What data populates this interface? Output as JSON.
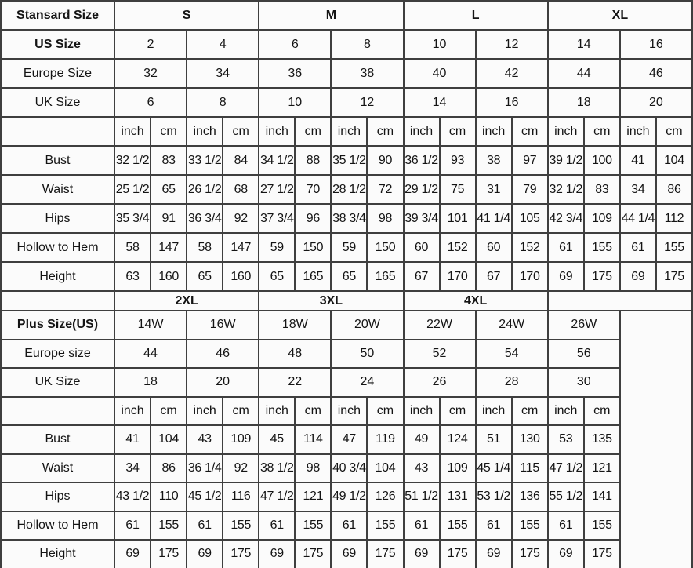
{
  "colors": {
    "border": "#3f3f3f",
    "thick_group_mark": "#000000",
    "cell_background": "#fbfbfb",
    "text": "#141414"
  },
  "chart_data": [
    {
      "type": "table",
      "name": "standard-sizes",
      "corner_label": "Stansard Size",
      "size_groups": [
        "S",
        "M",
        "L",
        "XL"
      ],
      "size_rows": [
        {
          "label": "US Size",
          "bold": true,
          "cells": [
            "2",
            "4",
            "6",
            "8",
            "10",
            "12",
            "14",
            "16"
          ]
        },
        {
          "label": "Europe Size",
          "bold": false,
          "cells": [
            "32",
            "34",
            "36",
            "38",
            "40",
            "42",
            "44",
            "46"
          ]
        },
        {
          "label": "UK Size",
          "bold": false,
          "cells": [
            "6",
            "8",
            "10",
            "12",
            "14",
            "16",
            "18",
            "20"
          ]
        }
      ],
      "unit_row": [
        "inch",
        "cm",
        "inch",
        "cm",
        "inch",
        "cm",
        "inch",
        "cm",
        "inch",
        "cm",
        "inch",
        "cm",
        "inch",
        "cm",
        "inch",
        "cm"
      ],
      "measure_rows": [
        {
          "label": "Bust",
          "cells": [
            "32 1/2",
            "83",
            "33 1/2",
            "84",
            "34 1/2",
            "88",
            "35 1/2",
            "90",
            "36 1/2",
            "93",
            "38",
            "97",
            "39 1/2",
            "100",
            "41",
            "104"
          ]
        },
        {
          "label": "Waist",
          "cells": [
            "25 1/2",
            "65",
            "26 1/2",
            "68",
            "27 1/2",
            "70",
            "28 1/2",
            "72",
            "29 1/2",
            "75",
            "31",
            "79",
            "32 1/2",
            "83",
            "34",
            "86"
          ]
        },
        {
          "label": "Hips",
          "cells": [
            "35 3/4",
            "91",
            "36 3/4",
            "92",
            "37 3/4",
            "96",
            "38 3/4",
            "98",
            "39 3/4",
            "101",
            "41 1/4",
            "105",
            "42 3/4",
            "109",
            "44 1/4",
            "112"
          ]
        },
        {
          "label": "Hollow to Hem",
          "cells": [
            "58",
            "147",
            "58",
            "147",
            "59",
            "150",
            "59",
            "150",
            "60",
            "152",
            "60",
            "152",
            "61",
            "155",
            "61",
            "155"
          ]
        },
        {
          "label": "Height",
          "cells": [
            "63",
            "160",
            "65",
            "160",
            "65",
            "165",
            "65",
            "165",
            "67",
            "170",
            "67",
            "170",
            "69",
            "175",
            "69",
            "175"
          ]
        }
      ]
    },
    {
      "type": "table",
      "name": "plus-sizes",
      "corner_label": "",
      "size_groups": [
        "2XL",
        "3XL",
        "4XL"
      ],
      "size_rows": [
        {
          "label": "Plus Size(US)",
          "bold": true,
          "cells": [
            "14W",
            "16W",
            "18W",
            "20W",
            "22W",
            "24W",
            "26W"
          ]
        },
        {
          "label": "Europe size",
          "bold": false,
          "cells": [
            "44",
            "46",
            "48",
            "50",
            "52",
            "54",
            "56"
          ]
        },
        {
          "label": "UK Size",
          "bold": false,
          "cells": [
            "18",
            "20",
            "22",
            "24",
            "26",
            "28",
            "30"
          ]
        }
      ],
      "unit_row": [
        "inch",
        "cm",
        "inch",
        "cm",
        "inch",
        "cm",
        "inch",
        "cm",
        "inch",
        "cm",
        "inch",
        "cm",
        "inch",
        "cm"
      ],
      "measure_rows": [
        {
          "label": "Bust",
          "cells": [
            "41",
            "104",
            "43",
            "109",
            "45",
            "114",
            "47",
            "119",
            "49",
            "124",
            "51",
            "130",
            "53",
            "135"
          ]
        },
        {
          "label": "Waist",
          "cells": [
            "34",
            "86",
            "36 1/4",
            "92",
            "38 1/2",
            "98",
            "40 3/4",
            "104",
            "43",
            "109",
            "45 1/4",
            "115",
            "47 1/2",
            "121"
          ]
        },
        {
          "label": "Hips",
          "cells": [
            "43 1/2",
            "110",
            "45 1/2",
            "116",
            "47 1/2",
            "121",
            "49 1/2",
            "126",
            "51 1/2",
            "131",
            "53 1/2",
            "136",
            "55 1/2",
            "141"
          ]
        },
        {
          "label": "Hollow to Hem",
          "cells": [
            "61",
            "155",
            "61",
            "155",
            "61",
            "155",
            "61",
            "155",
            "61",
            "155",
            "61",
            "155",
            "61",
            "155"
          ]
        },
        {
          "label": "Height",
          "cells": [
            "69",
            "175",
            "69",
            "175",
            "69",
            "175",
            "69",
            "175",
            "69",
            "175",
            "69",
            "175",
            "69",
            "175"
          ]
        }
      ],
      "trailing_empty_column": true
    }
  ]
}
